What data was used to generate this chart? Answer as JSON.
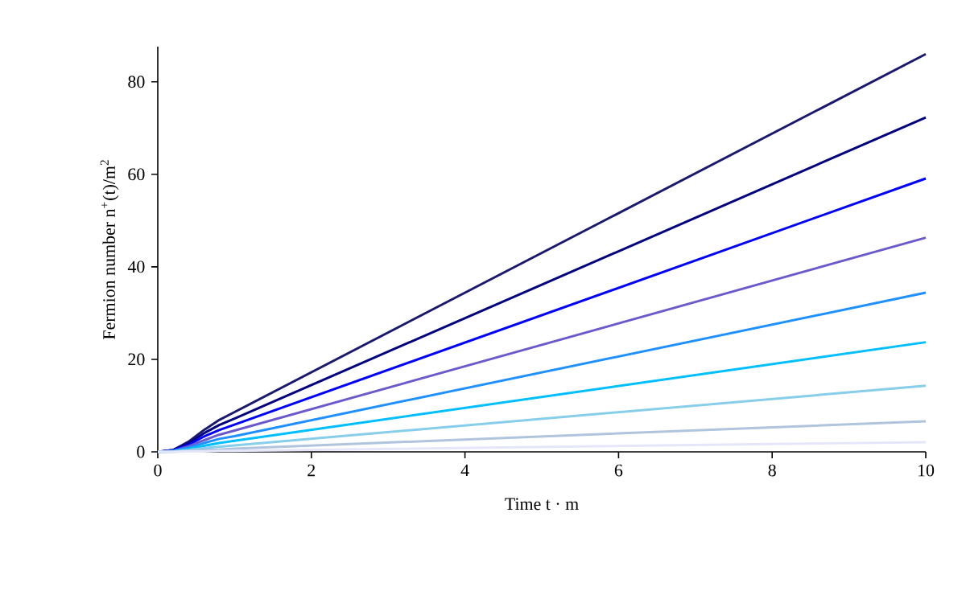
{
  "chart_data": {
    "type": "line",
    "xlabel": "Time t · m",
    "ylabel": "Fermion number n$^{+}$(t)/m$^{2}$",
    "x": [
      0,
      0.2,
      0.4,
      0.6,
      0.8,
      1,
      10
    ],
    "series": [
      {
        "color": "#191970",
        "values": [
          0,
          0.4,
          2.2,
          4.7,
          6.9,
          8.6,
          86
        ]
      },
      {
        "color": "#000080",
        "values": [
          0,
          0.4,
          1.8,
          4.0,
          5.8,
          7.2,
          72.3
        ]
      },
      {
        "color": "#0000ff",
        "values": [
          0,
          0.3,
          1.5,
          3.3,
          4.7,
          5.9,
          59.1
        ]
      },
      {
        "color": "#6a5acd",
        "values": [
          0,
          0.2,
          1.2,
          2.5,
          3.7,
          4.6,
          46.3
        ]
      },
      {
        "color": "#1e90ff",
        "values": [
          0,
          0.2,
          0.9,
          1.9,
          2.8,
          3.4,
          34.4
        ]
      },
      {
        "color": "#00bfff",
        "values": [
          0,
          0.1,
          0.6,
          1.3,
          1.9,
          2.4,
          23.7
        ]
      },
      {
        "color": "#87ceeb",
        "values": [
          0,
          0.1,
          0.4,
          0.8,
          1.1,
          1.4,
          14.3
        ]
      },
      {
        "color": "#b0c4de",
        "values": [
          0,
          0,
          0.2,
          0.4,
          0.5,
          0.7,
          6.6
        ]
      },
      {
        "color": "#e6e6fa",
        "values": [
          0,
          0,
          0.1,
          0.1,
          0.2,
          0.2,
          2.1
        ]
      }
    ],
    "xlim": [
      0,
      10
    ],
    "xticks": [
      0,
      2,
      4,
      6,
      8,
      10
    ],
    "ylim": [
      0,
      87.6
    ],
    "yticks": [
      0,
      20,
      40,
      60,
      80
    ],
    "grid": false,
    "marker": "none",
    "line_style": "solid"
  }
}
